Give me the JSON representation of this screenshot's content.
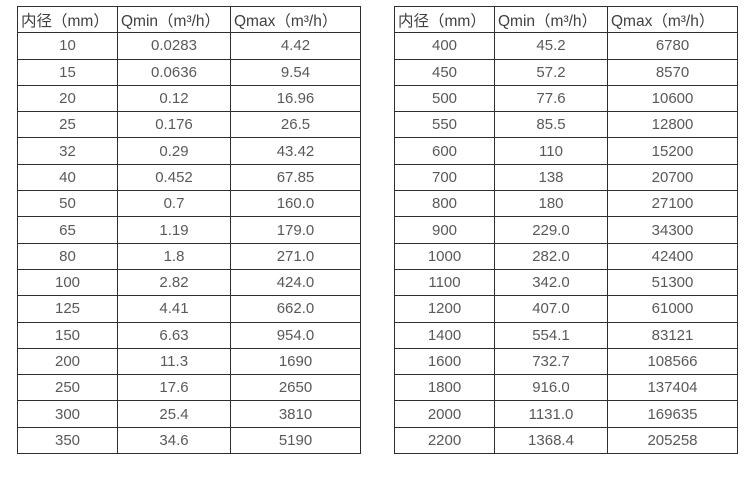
{
  "page": {
    "background": "#ffffff",
    "border_color": "#2e2e2e",
    "header_text_color": "#404040",
    "cell_text_color": "#595959"
  },
  "tables": [
    {
      "name": "flow-spec-table-small-diameters",
      "headers": [
        "内径（mm）",
        "Qmin（m³/h）",
        "Qmax（m³/h）"
      ],
      "rows": [
        [
          "10",
          "0.0283",
          "4.42"
        ],
        [
          "15",
          "0.0636",
          "9.54"
        ],
        [
          "20",
          "0.12",
          "16.96"
        ],
        [
          "25",
          "0.176",
          "26.5"
        ],
        [
          "32",
          "0.29",
          "43.42"
        ],
        [
          "40",
          "0.452",
          "67.85"
        ],
        [
          "50",
          "0.7",
          "160.0"
        ],
        [
          "65",
          "1.19",
          "179.0"
        ],
        [
          "80",
          "1.8",
          "271.0"
        ],
        [
          "100",
          "2.82",
          "424.0"
        ],
        [
          "125",
          "4.41",
          "662.0"
        ],
        [
          "150",
          "6.63",
          "954.0"
        ],
        [
          "200",
          "11.3",
          "1690"
        ],
        [
          "250",
          "17.6",
          "2650"
        ],
        [
          "300",
          "25.4",
          "3810"
        ],
        [
          "350",
          "34.6",
          "5190"
        ]
      ]
    },
    {
      "name": "flow-spec-table-large-diameters",
      "headers": [
        "内径（mm）",
        "Qmin（m³/h）",
        "Qmax（m³/h）"
      ],
      "rows": [
        [
          "400",
          "45.2",
          "6780"
        ],
        [
          "450",
          "57.2",
          "8570"
        ],
        [
          "500",
          "77.6",
          "10600"
        ],
        [
          "550",
          "85.5",
          "12800"
        ],
        [
          "600",
          "110",
          "15200"
        ],
        [
          "700",
          "138",
          "20700"
        ],
        [
          "800",
          "180",
          "27100"
        ],
        [
          "900",
          "229.0",
          "34300"
        ],
        [
          "1000",
          "282.0",
          "42400"
        ],
        [
          "1100",
          "342.0",
          "51300"
        ],
        [
          "1200",
          "407.0",
          "61000"
        ],
        [
          "1400",
          "554.1",
          "83121"
        ],
        [
          "1600",
          "732.7",
          "108566"
        ],
        [
          "1800",
          "916.0",
          "137404"
        ],
        [
          "2000",
          "1131.0",
          "169635"
        ],
        [
          "2200",
          "1368.4",
          "205258"
        ]
      ]
    }
  ]
}
